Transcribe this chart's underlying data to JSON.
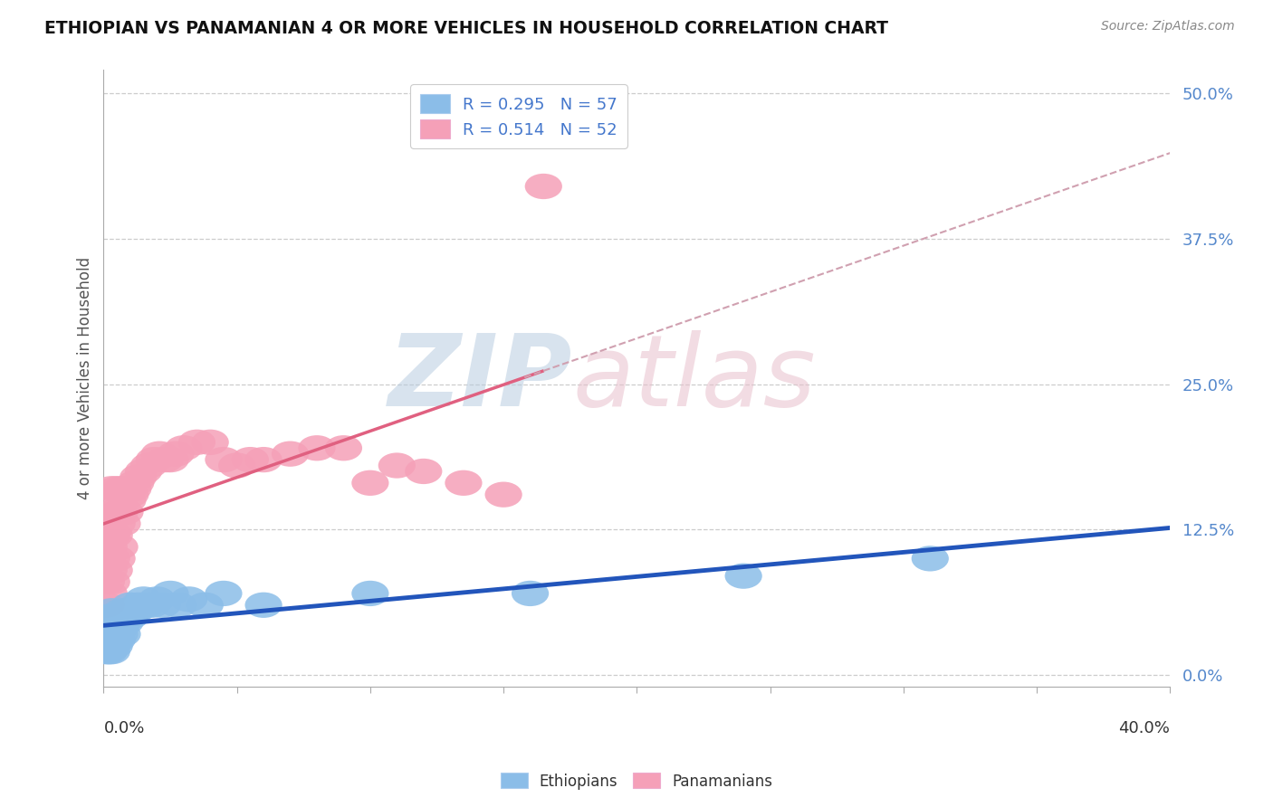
{
  "title": "ETHIOPIAN VS PANAMANIAN 4 OR MORE VEHICLES IN HOUSEHOLD CORRELATION CHART",
  "source_text": "Source: ZipAtlas.com",
  "ylabel": "4 or more Vehicles in Household",
  "xlim": [
    0.0,
    0.4
  ],
  "ylim": [
    -0.01,
    0.52
  ],
  "ytick_labels": [
    "0.0%",
    "12.5%",
    "25.0%",
    "37.5%",
    "50.0%"
  ],
  "ytick_values": [
    0.0,
    0.125,
    0.25,
    0.375,
    0.5
  ],
  "legend_r_eth": "R = 0.295",
  "legend_n_eth": "N = 57",
  "legend_r_pan": "R = 0.514",
  "legend_n_pan": "N = 52",
  "ethiopian_color": "#8bbde8",
  "panamanian_color": "#f5a0b8",
  "trend_ethiopian_color": "#2255bb",
  "trend_panamanian_color": "#e06080",
  "trend_pan_dashed_color": "#d0a0b0",
  "background_color": "#ffffff",
  "grid_color": "#cccccc",
  "ethiopians_x": [
    0.001,
    0.001,
    0.001,
    0.001,
    0.001,
    0.002,
    0.002,
    0.002,
    0.002,
    0.002,
    0.002,
    0.002,
    0.003,
    0.003,
    0.003,
    0.003,
    0.003,
    0.003,
    0.003,
    0.004,
    0.004,
    0.004,
    0.004,
    0.004,
    0.005,
    0.005,
    0.005,
    0.005,
    0.006,
    0.006,
    0.006,
    0.007,
    0.007,
    0.007,
    0.008,
    0.008,
    0.009,
    0.01,
    0.01,
    0.011,
    0.012,
    0.013,
    0.015,
    0.016,
    0.018,
    0.02,
    0.022,
    0.025,
    0.028,
    0.032,
    0.038,
    0.045,
    0.06,
    0.1,
    0.16,
    0.24,
    0.31
  ],
  "ethiopians_y": [
    0.03,
    0.025,
    0.035,
    0.02,
    0.04,
    0.025,
    0.035,
    0.045,
    0.03,
    0.02,
    0.04,
    0.05,
    0.025,
    0.035,
    0.045,
    0.03,
    0.04,
    0.02,
    0.055,
    0.03,
    0.04,
    0.05,
    0.025,
    0.035,
    0.04,
    0.03,
    0.05,
    0.045,
    0.04,
    0.05,
    0.035,
    0.045,
    0.055,
    0.035,
    0.045,
    0.05,
    0.055,
    0.05,
    0.06,
    0.055,
    0.055,
    0.06,
    0.065,
    0.06,
    0.06,
    0.065,
    0.06,
    0.07,
    0.06,
    0.065,
    0.06,
    0.07,
    0.06,
    0.07,
    0.07,
    0.085,
    0.1
  ],
  "panamanians_x": [
    0.001,
    0.001,
    0.001,
    0.001,
    0.002,
    0.002,
    0.002,
    0.002,
    0.002,
    0.003,
    0.003,
    0.003,
    0.003,
    0.004,
    0.004,
    0.004,
    0.005,
    0.005,
    0.005,
    0.006,
    0.006,
    0.007,
    0.007,
    0.008,
    0.009,
    0.01,
    0.011,
    0.012,
    0.013,
    0.015,
    0.017,
    0.019,
    0.021,
    0.023,
    0.025,
    0.027,
    0.03,
    0.035,
    0.04,
    0.045,
    0.05,
    0.055,
    0.06,
    0.07,
    0.08,
    0.09,
    0.1,
    0.11,
    0.12,
    0.135,
    0.15,
    0.165
  ],
  "panamanians_y": [
    0.06,
    0.08,
    0.1,
    0.12,
    0.07,
    0.09,
    0.11,
    0.13,
    0.15,
    0.08,
    0.1,
    0.12,
    0.16,
    0.09,
    0.12,
    0.14,
    0.1,
    0.13,
    0.16,
    0.11,
    0.14,
    0.13,
    0.16,
    0.14,
    0.15,
    0.155,
    0.16,
    0.165,
    0.17,
    0.175,
    0.18,
    0.185,
    0.19,
    0.185,
    0.185,
    0.19,
    0.195,
    0.2,
    0.2,
    0.185,
    0.18,
    0.185,
    0.185,
    0.19,
    0.195,
    0.195,
    0.165,
    0.18,
    0.175,
    0.165,
    0.155,
    0.42
  ]
}
